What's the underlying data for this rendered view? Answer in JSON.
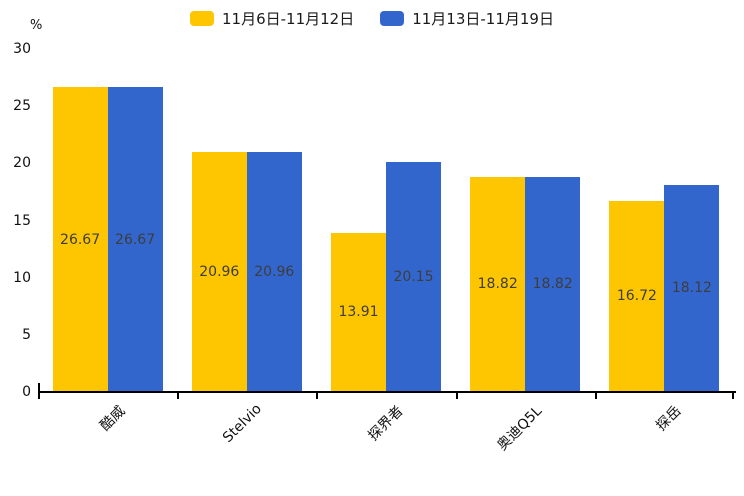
{
  "chart_data": {
    "type": "bar",
    "title": "",
    "unit_label": "%",
    "categories": [
      "酷威",
      "Stelvio",
      "探界者",
      "奥迪Q5L",
      "探岳"
    ],
    "series": [
      {
        "name": "11月6日-11月12日",
        "color": "#FEC600",
        "values": [
          26.67,
          20.96,
          13.91,
          18.82,
          16.72
        ]
      },
      {
        "name": "11月13日-11月19日",
        "color": "#3366CC",
        "values": [
          26.67,
          20.96,
          20.15,
          18.82,
          18.12
        ]
      }
    ],
    "ylim": [
      0,
      30
    ],
    "yticks": [
      "0",
      "5",
      "10",
      "15",
      "20",
      "25",
      "30"
    ],
    "grid": false,
    "legend_position": "top",
    "value_labels_shown": true,
    "xlabel": "",
    "ylabel": ""
  },
  "colors": {
    "background": "#ffffff",
    "axis": "#000000",
    "tick_label": "#111111",
    "value_label": "#3d3d3d",
    "legend_text": "#1a1a1a"
  }
}
